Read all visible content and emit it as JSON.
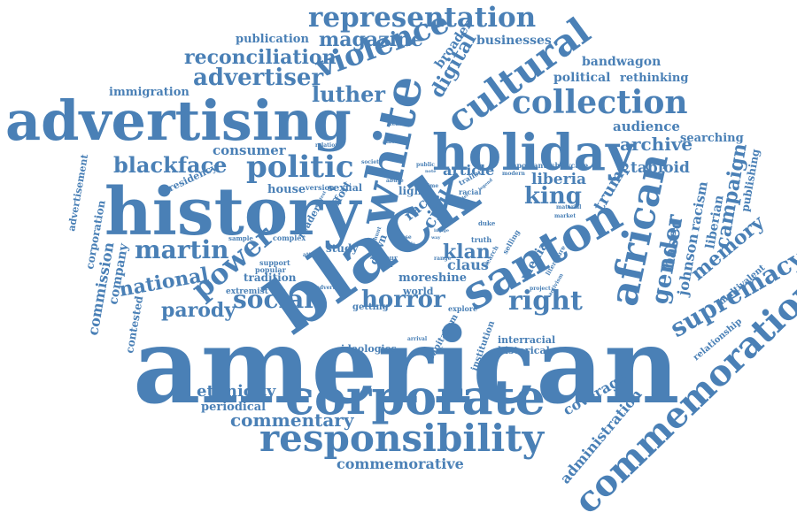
{
  "cloud": {
    "color": "#4a80b6",
    "words": [
      "american",
      "black",
      "corporate",
      "responsibility",
      "history",
      "advertising",
      "holiday",
      "white",
      "santon",
      "african",
      "commemoration",
      "cultural",
      "collection",
      "representation",
      "violence",
      "politic",
      "power",
      "national",
      "martin",
      "blackface",
      "social",
      "parody",
      "horror",
      "right",
      "gender",
      "supremacy",
      "campaign",
      "memory",
      "king",
      "liberia",
      "klan",
      "trump",
      "magazine",
      "reconciliation",
      "advertiser",
      "luther",
      "digital",
      "publication",
      "businesses",
      "broader",
      "bandwagon",
      "political",
      "rethinking",
      "immigration",
      "audience",
      "archive",
      "searching",
      "tabloid",
      "consumer",
      "house",
      "sexual",
      "civil",
      "race",
      "article",
      "claus",
      "moreshine",
      "world",
      "commentary",
      "ethnicity",
      "periodical",
      "commemorative",
      "coverage",
      "administration",
      "commission",
      "company",
      "contested",
      "corporation",
      "advertisement",
      "presidency",
      "johnson",
      "liberian",
      "racism",
      "based",
      "publishing",
      "relationship",
      "multivalent",
      "ideologies",
      "interracial",
      "historical",
      "capitalism",
      "institution",
      "getting",
      "explore",
      "tradition",
      "extremist",
      "support",
      "popular",
      "complex",
      "reader",
      "study",
      "dawn",
      "effort",
      "version",
      "light",
      "abuse",
      "society",
      "relation",
      "america",
      "feature",
      "public",
      "modern",
      "important",
      "showcase",
      "trailer",
      "material",
      "market",
      "selling",
      "literature",
      "project",
      "activism",
      "truth",
      "duke",
      "search",
      "case",
      "tour",
      "year",
      "range",
      "media",
      "sample",
      "attack",
      "advert",
      "arrival",
      "legacy",
      "hunt",
      "time",
      "racial",
      "legend",
      "note",
      "role",
      "way",
      "leader",
      "image",
      "context"
    ]
  }
}
